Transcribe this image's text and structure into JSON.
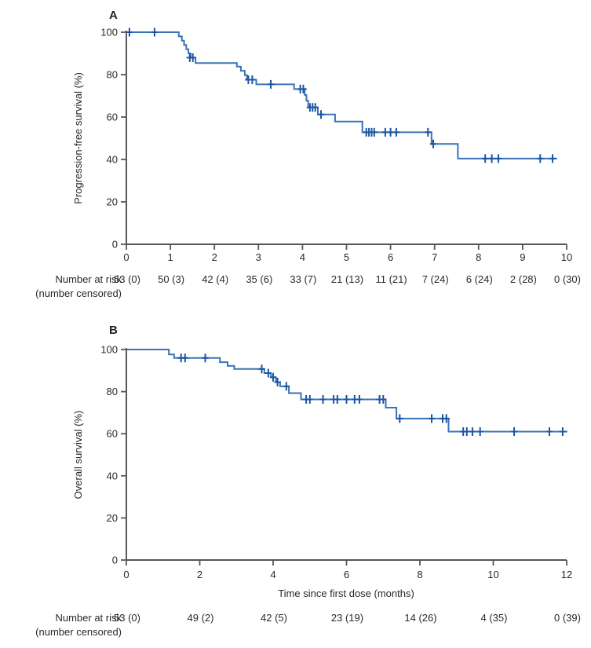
{
  "risk_header": {
    "line1": "Number at risk",
    "line2": "(number censored)"
  },
  "colors": {
    "curve": "#3a73b6",
    "censor": "#1a55a3",
    "axis": "#565759",
    "text": "#2b2829"
  },
  "chart_data": [
    {
      "type": "line",
      "interpolation": "step",
      "panel_label": "A",
      "title": "",
      "xlabel": "",
      "ylabel": "Progression-free survival (%)",
      "xlim": [
        0,
        10
      ],
      "ylim": [
        0,
        100
      ],
      "xticks": [
        0,
        1,
        2,
        3,
        4,
        5,
        6,
        7,
        8,
        9,
        10
      ],
      "yticks": [
        0,
        20,
        40,
        60,
        80,
        100
      ],
      "grid": false,
      "legend": "none",
      "series": [
        {
          "name": "Progression-free survival",
          "points": [
            [
              0,
              100
            ],
            [
              1.19,
              100
            ],
            [
              1.19,
              98
            ],
            [
              1.26,
              98
            ],
            [
              1.26,
              96
            ],
            [
              1.31,
              96
            ],
            [
              1.31,
              94
            ],
            [
              1.36,
              94
            ],
            [
              1.36,
              92
            ],
            [
              1.41,
              92
            ],
            [
              1.41,
              90
            ],
            [
              1.46,
              90
            ],
            [
              1.46,
              88
            ],
            [
              1.57,
              88
            ],
            [
              1.57,
              85.5
            ],
            [
              2.51,
              85.5
            ],
            [
              2.51,
              83.8
            ],
            [
              2.6,
              83.8
            ],
            [
              2.6,
              81.8
            ],
            [
              2.69,
              81.8
            ],
            [
              2.69,
              79.7
            ],
            [
              2.74,
              79.7
            ],
            [
              2.74,
              77.6
            ],
            [
              2.95,
              77.6
            ],
            [
              2.95,
              75.4
            ],
            [
              3.81,
              75.4
            ],
            [
              3.81,
              73.2
            ],
            [
              4.05,
              73.2
            ],
            [
              4.05,
              70.4
            ],
            [
              4.09,
              70.4
            ],
            [
              4.09,
              67.7
            ],
            [
              4.13,
              67.7
            ],
            [
              4.13,
              64.5
            ],
            [
              4.35,
              64.5
            ],
            [
              4.35,
              61.2
            ],
            [
              4.74,
              61.2
            ],
            [
              4.74,
              57.9
            ],
            [
              5.36,
              57.9
            ],
            [
              5.36,
              52.8
            ],
            [
              6.93,
              52.8
            ],
            [
              6.93,
              47.3
            ],
            [
              7.53,
              47.3
            ],
            [
              7.53,
              40.4
            ],
            [
              9.78,
              40.4
            ]
          ],
          "censor_marks": [
            [
              0.07,
              100
            ],
            [
              0.64,
              100
            ],
            [
              1.44,
              88
            ],
            [
              1.51,
              88
            ],
            [
              2.77,
              77.6
            ],
            [
              2.86,
              77.6
            ],
            [
              3.28,
              75.4
            ],
            [
              3.95,
              73.2
            ],
            [
              4.02,
              73.2
            ],
            [
              4.17,
              64.5
            ],
            [
              4.23,
              64.5
            ],
            [
              4.29,
              64.5
            ],
            [
              4.42,
              61.2
            ],
            [
              5.45,
              52.8
            ],
            [
              5.51,
              52.8
            ],
            [
              5.57,
              52.8
            ],
            [
              5.63,
              52.8
            ],
            [
              5.88,
              52.8
            ],
            [
              6.0,
              52.8
            ],
            [
              6.13,
              52.8
            ],
            [
              6.85,
              52.8
            ],
            [
              6.97,
              47.3
            ],
            [
              8.15,
              40.4
            ],
            [
              8.3,
              40.4
            ],
            [
              8.45,
              40.4
            ],
            [
              9.4,
              40.4
            ],
            [
              9.68,
              40.4
            ]
          ]
        }
      ],
      "number_at_risk": {
        "times": [
          0,
          1,
          2,
          3,
          4,
          5,
          6,
          7,
          8,
          9,
          10
        ],
        "values": [
          "53 (0)",
          "50 (3)",
          "42 (4)",
          "35 (6)",
          "33 (7)",
          "21 (13)",
          "11 (21)",
          "7 (24)",
          "6 (24)",
          "2 (28)",
          "0 (30)"
        ]
      }
    },
    {
      "type": "line",
      "interpolation": "step",
      "panel_label": "B",
      "title": "",
      "xlabel": "Time since first dose (months)",
      "ylabel": "Overall survival (%)",
      "xlim": [
        0,
        12
      ],
      "ylim": [
        0,
        100
      ],
      "xticks": [
        0,
        2,
        4,
        6,
        8,
        10,
        12
      ],
      "yticks": [
        0,
        20,
        40,
        60,
        80,
        100
      ],
      "grid": false,
      "legend": "none",
      "series": [
        {
          "name": "Overall survival",
          "points": [
            [
              0,
              100
            ],
            [
              1.16,
              100
            ],
            [
              1.16,
              97.7
            ],
            [
              1.3,
              97.7
            ],
            [
              1.3,
              96
            ],
            [
              2.55,
              96
            ],
            [
              2.55,
              94
            ],
            [
              2.76,
              94
            ],
            [
              2.76,
              92.2
            ],
            [
              2.94,
              92.2
            ],
            [
              2.94,
              90.8
            ],
            [
              3.76,
              90.8
            ],
            [
              3.76,
              88.8
            ],
            [
              3.94,
              88.8
            ],
            [
              3.94,
              86.8
            ],
            [
              4.08,
              86.8
            ],
            [
              4.08,
              84.5
            ],
            [
              4.19,
              84.5
            ],
            [
              4.19,
              82.5
            ],
            [
              4.43,
              82.5
            ],
            [
              4.43,
              79.3
            ],
            [
              4.76,
              79.3
            ],
            [
              4.76,
              76.3
            ],
            [
              7.07,
              76.3
            ],
            [
              7.07,
              72.4
            ],
            [
              7.36,
              72.4
            ],
            [
              7.36,
              67.2
            ],
            [
              8.78,
              67.2
            ],
            [
              8.78,
              61
            ],
            [
              12.02,
              61
            ]
          ],
          "censor_marks": [
            [
              1.49,
              96
            ],
            [
              1.6,
              96
            ],
            [
              2.15,
              96
            ],
            [
              3.69,
              90.8
            ],
            [
              3.87,
              88.8
            ],
            [
              4.0,
              86.8
            ],
            [
              4.12,
              84.5
            ],
            [
              4.36,
              82.5
            ],
            [
              4.9,
              76.3
            ],
            [
              5.0,
              76.3
            ],
            [
              5.36,
              76.3
            ],
            [
              5.65,
              76.3
            ],
            [
              5.75,
              76.3
            ],
            [
              6.0,
              76.3
            ],
            [
              6.22,
              76.3
            ],
            [
              6.35,
              76.3
            ],
            [
              6.9,
              76.3
            ],
            [
              7.0,
              76.3
            ],
            [
              7.45,
              67.2
            ],
            [
              8.32,
              67.2
            ],
            [
              8.62,
              67.2
            ],
            [
              8.72,
              67.2
            ],
            [
              9.18,
              61
            ],
            [
              9.28,
              61
            ],
            [
              9.43,
              61
            ],
            [
              9.64,
              61
            ],
            [
              10.57,
              61
            ],
            [
              11.53,
              61
            ],
            [
              11.89,
              61
            ]
          ]
        }
      ],
      "number_at_risk": {
        "times": [
          0,
          2,
          4,
          6,
          8,
          10,
          12
        ],
        "values": [
          "53 (0)",
          "49 (2)",
          "42 (5)",
          "23 (19)",
          "14 (26)",
          "4 (35)",
          "0 (39)"
        ]
      }
    }
  ]
}
